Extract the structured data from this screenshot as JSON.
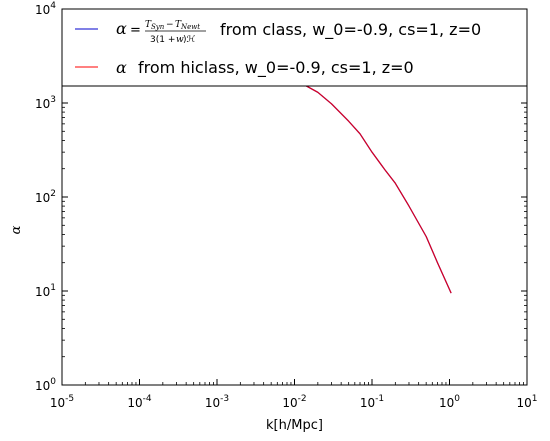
{
  "chart_data": {
    "type": "line",
    "xlabel": "k[h/Mpc]",
    "ylabel": "α",
    "xscale": "log",
    "yscale": "log",
    "xlim": [
      1e-05,
      10
    ],
    "ylim": [
      1,
      10000
    ],
    "grid": false,
    "legend_placement": "top",
    "x_ticks": [
      {
        "base": "10",
        "exp": "-5"
      },
      {
        "base": "10",
        "exp": "-4"
      },
      {
        "base": "10",
        "exp": "-3"
      },
      {
        "base": "10",
        "exp": "-2"
      },
      {
        "base": "10",
        "exp": "-1"
      },
      {
        "base": "10",
        "exp": "0"
      },
      {
        "base": "10",
        "exp": "1"
      }
    ],
    "y_ticks": [
      {
        "base": "10",
        "exp": "0"
      },
      {
        "base": "10",
        "exp": "1"
      },
      {
        "base": "10",
        "exp": "2"
      },
      {
        "base": "10",
        "exp": "3"
      },
      {
        "base": "10",
        "exp": "4"
      }
    ],
    "series": [
      {
        "name": "from class, w_0=-0.9, cs=1, z=0",
        "legend_math": "α = (T_Syn − T_Newt) / (3(1+w)ℋ)",
        "color": "#0000cc",
        "x": [
          1e-05,
          0.0001,
          0.001,
          0.003,
          0.006,
          0.01,
          0.02,
          0.03,
          0.05,
          0.07,
          0.1,
          0.15,
          0.2,
          0.3,
          0.5,
          0.7,
          1.05
        ],
        "y": [
          2350,
          2340,
          2300,
          2180,
          2000,
          1780,
          1300,
          980,
          640,
          470,
          300,
          190,
          140,
          80,
          38,
          20,
          9.5
        ]
      },
      {
        "name": "from hiclass, w_0=-0.9, cs=1, z=0",
        "legend_math": "α",
        "color": "#ff0000",
        "x": [
          1e-05,
          0.0001,
          0.001,
          0.003,
          0.006,
          0.01,
          0.02,
          0.03,
          0.05,
          0.07,
          0.1,
          0.15,
          0.2,
          0.3,
          0.5,
          0.7,
          1.05
        ],
        "y": [
          2350,
          2340,
          2300,
          2180,
          2000,
          1780,
          1300,
          980,
          640,
          470,
          300,
          190,
          140,
          80,
          38,
          20,
          9.5
        ]
      }
    ]
  }
}
